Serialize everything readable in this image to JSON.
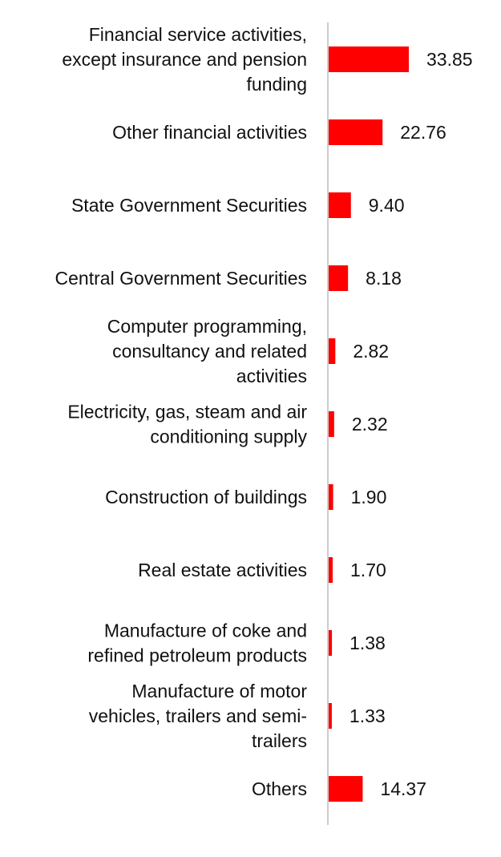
{
  "chart_data": {
    "type": "bar",
    "orientation": "horizontal",
    "categories": [
      "Financial service activities, except insurance and pension funding",
      "Other financial activities",
      "State Government Securities",
      "Central Government Securities",
      "Computer programming, consultancy and related activities",
      "Electricity, gas, steam and air conditioning supply",
      "Construction of buildings",
      "Real estate activities",
      "Manufacture of coke and refined petroleum products",
      "Manufacture of motor vehicles, trailers and semi-trailers",
      "Others"
    ],
    "category_lines": [
      [
        "Financial service activities,",
        "except insurance and pension",
        "funding"
      ],
      [
        "Other financial activities"
      ],
      [
        "State Government Securities"
      ],
      [
        "Central Government Securities"
      ],
      [
        "Computer programming,",
        "consultancy and related",
        "activities"
      ],
      [
        "Electricity, gas, steam and air",
        "conditioning supply"
      ],
      [
        "Construction of buildings"
      ],
      [
        "Real estate activities"
      ],
      [
        "Manufacture of coke and",
        "refined petroleum products"
      ],
      [
        "Manufacture of motor",
        "vehicles, trailers and semi-",
        "trailers"
      ],
      [
        "Others"
      ]
    ],
    "values": [
      33.85,
      22.76,
      9.4,
      8.18,
      2.82,
      2.32,
      1.9,
      1.7,
      1.38,
      1.33,
      14.37
    ],
    "value_labels": [
      "33.85",
      "22.76",
      "9.40",
      "8.18",
      "2.82",
      "2.32",
      "1.90",
      "1.70",
      "1.38",
      "1.33",
      "14.37"
    ],
    "title": "",
    "xlabel": "",
    "ylabel": "",
    "xlim": [
      0,
      33.85
    ],
    "grid": false,
    "legend": "none",
    "bar_color": "#ff0000",
    "axis_color": "#cccccc"
  }
}
